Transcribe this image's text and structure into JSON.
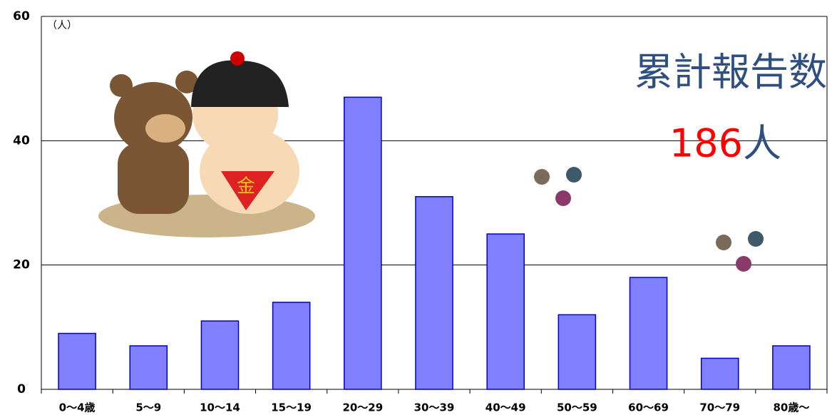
{
  "chart_data": {
    "type": "bar",
    "y_unit_label": "（人）",
    "annotation_title": "累計報告数",
    "annotation_total": 186,
    "annotation_total_unit": "人",
    "categories": [
      "0～4歳",
      "5～9",
      "10～14",
      "15～19",
      "20～29",
      "30～39",
      "40～49",
      "50～59",
      "60～69",
      "70～79",
      "80歳～"
    ],
    "values": [
      9,
      7,
      11,
      14,
      47,
      31,
      25,
      12,
      18,
      5,
      7
    ],
    "color": "#8080ff",
    "ylim": [
      0,
      60
    ],
    "yticks": [
      0,
      20,
      40,
      60
    ],
    "grid": true
  }
}
